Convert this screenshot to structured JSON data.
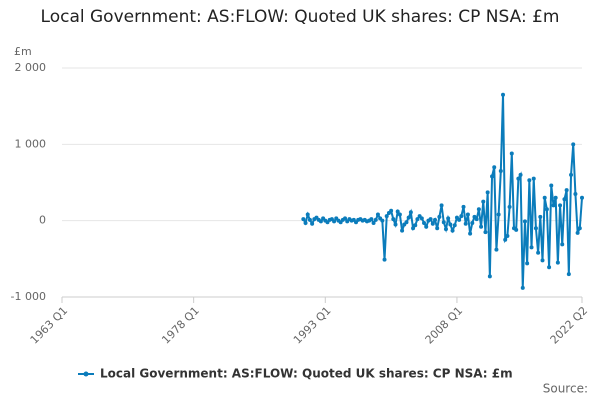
{
  "chart_data": {
    "type": "line",
    "title": "Local Government: AS:FLOW: Quoted UK shares: CP NSA: £m",
    "y_label": "£m",
    "source": "Source:",
    "xlim": [
      "1963 Q1",
      "2022 Q2"
    ],
    "xticks": [
      "1963 Q1",
      "1978 Q1",
      "1993 Q1",
      "2008 Q1",
      "2022 Q2"
    ],
    "ylim": [
      -1000,
      2000
    ],
    "yticks": [
      {
        "value": -1000,
        "label": "-1 000"
      },
      0,
      {
        "value": 1000,
        "label": "1 000"
      },
      {
        "value": 2000,
        "label": "2 000"
      }
    ],
    "grid": true,
    "legend": "bottom",
    "x": [
      "1990 Q3",
      "1990 Q4",
      "1991 Q1",
      "1991 Q2",
      "1991 Q3",
      "1991 Q4",
      "1992 Q1",
      "1992 Q2",
      "1992 Q3",
      "1992 Q4",
      "1993 Q1",
      "1993 Q2",
      "1993 Q3",
      "1993 Q4",
      "1994 Q1",
      "1994 Q2",
      "1994 Q3",
      "1994 Q4",
      "1995 Q1",
      "1995 Q2",
      "1995 Q3",
      "1995 Q4",
      "1996 Q1",
      "1996 Q2",
      "1996 Q3",
      "1996 Q4",
      "1997 Q1",
      "1997 Q2",
      "1997 Q3",
      "1997 Q4",
      "1998 Q1",
      "1998 Q2",
      "1998 Q3",
      "1998 Q4",
      "1999 Q1",
      "1999 Q2",
      "1999 Q3",
      "1999 Q4",
      "2000 Q1",
      "2000 Q2",
      "2000 Q3",
      "2000 Q4",
      "2001 Q1",
      "2001 Q2",
      "2001 Q3",
      "2001 Q4",
      "2002 Q1",
      "2002 Q2",
      "2002 Q3",
      "2002 Q4",
      "2003 Q1",
      "2003 Q2",
      "2003 Q3",
      "2003 Q4",
      "2004 Q1",
      "2004 Q2",
      "2004 Q3",
      "2004 Q4",
      "2005 Q1",
      "2005 Q2",
      "2005 Q3",
      "2005 Q4",
      "2006 Q1",
      "2006 Q2",
      "2006 Q3",
      "2006 Q4",
      "2007 Q1",
      "2007 Q2",
      "2007 Q3",
      "2007 Q4",
      "2008 Q1",
      "2008 Q2",
      "2008 Q3",
      "2008 Q4",
      "2009 Q1",
      "2009 Q2",
      "2009 Q3",
      "2009 Q4",
      "2010 Q1",
      "2010 Q2",
      "2010 Q3",
      "2010 Q4",
      "2011 Q1",
      "2011 Q2",
      "2011 Q3",
      "2011 Q4",
      "2012 Q1",
      "2012 Q2",
      "2012 Q3",
      "2012 Q4",
      "2013 Q1",
      "2013 Q2",
      "2013 Q3",
      "2013 Q4",
      "2014 Q1",
      "2014 Q2",
      "2014 Q3",
      "2014 Q4",
      "2015 Q1",
      "2015 Q2",
      "2015 Q3",
      "2015 Q4",
      "2016 Q1",
      "2016 Q2",
      "2016 Q3",
      "2016 Q4",
      "2017 Q1",
      "2017 Q2",
      "2017 Q3",
      "2017 Q4",
      "2018 Q1",
      "2018 Q2",
      "2018 Q3",
      "2018 Q4",
      "2019 Q1",
      "2019 Q2",
      "2019 Q3",
      "2019 Q4",
      "2020 Q1",
      "2020 Q2",
      "2020 Q3",
      "2020 Q4",
      "2021 Q1",
      "2021 Q2",
      "2021 Q3",
      "2021 Q4",
      "2022 Q1",
      "2022 Q2"
    ],
    "series": [
      {
        "name": "Local Government: AS:FLOW: Quoted UK shares: CP NSA: £m",
        "color": "#0b7cbb",
        "values": [
          20,
          -30,
          80,
          10,
          -40,
          20,
          40,
          10,
          -10,
          30,
          0,
          -20,
          10,
          20,
          -10,
          30,
          0,
          -20,
          10,
          30,
          -10,
          20,
          0,
          10,
          -20,
          10,
          20,
          0,
          10,
          -10,
          0,
          20,
          -30,
          10,
          80,
          30,
          0,
          -510,
          60,
          100,
          130,
          20,
          -50,
          120,
          80,
          -130,
          -50,
          -20,
          40,
          110,
          -100,
          -60,
          20,
          60,
          30,
          -30,
          -80,
          0,
          20,
          -40,
          10,
          -100,
          50,
          200,
          -20,
          -110,
          30,
          -50,
          -130,
          -60,
          40,
          10,
          60,
          180,
          -40,
          80,
          -170,
          -30,
          50,
          20,
          150,
          -80,
          250,
          -150,
          370,
          -730,
          580,
          700,
          -380,
          80,
          650,
          1650,
          -250,
          -200,
          180,
          880,
          -100,
          -120,
          550,
          600,
          -880,
          -10,
          -560,
          530,
          -350,
          550,
          -100,
          -420,
          50,
          -520,
          300,
          150,
          -610,
          460,
          200,
          300,
          -550,
          200,
          -310,
          280,
          400,
          -700,
          600,
          1000,
          350,
          -160,
          -100,
          300
        ]
      }
    ]
  }
}
